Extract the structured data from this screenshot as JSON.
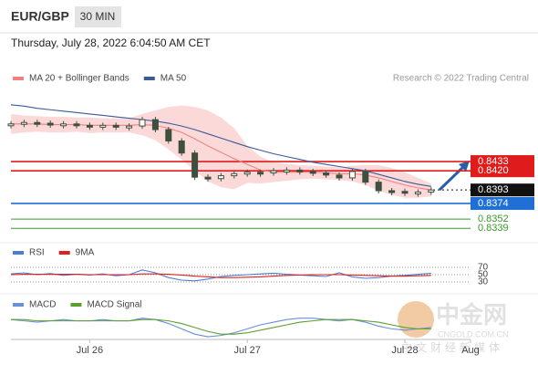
{
  "header": {
    "symbol": "EUR/GBP",
    "interval": "30 MIN",
    "timestamp": "Thursday, July 28, 2022 6:04:50 AM CET",
    "source": "Research © 2022 Trading Central"
  },
  "watermark": {
    "brand": "中金网",
    "site": "CNGOLD.COM.CN",
    "slogan": "中文财经新媒体"
  },
  "chart_data": [
    {
      "type": "candlestick",
      "categories": [
        null,
        null,
        null,
        null,
        null,
        null,
        "Jul 26",
        null,
        null,
        null,
        null,
        null,
        null,
        null,
        null,
        null,
        null,
        null,
        "Jul 27",
        null,
        null,
        null,
        null,
        null,
        null,
        null,
        null,
        null,
        null,
        null,
        "Jul 28",
        null,
        null,
        null,
        null,
        "Aug"
      ],
      "ylim": [
        0.8329,
        0.8532
      ],
      "price": {
        "color": "#3f4f3f",
        "values": [
          0.8486,
          0.8488,
          0.8487,
          0.8485,
          0.8486,
          0.8484,
          0.8483,
          0.8484,
          0.8482,
          0.8483,
          0.8492,
          0.8478,
          0.8462,
          0.8445,
          0.8411,
          0.8409,
          0.8413,
          0.8416,
          0.8418,
          0.8417,
          0.842,
          0.8421,
          0.8419,
          0.8417,
          0.8414,
          0.841,
          0.8419,
          0.8404,
          0.8392,
          0.8391,
          0.8389,
          0.839,
          0.8393,
          null,
          null,
          null
        ]
      },
      "series": [
        {
          "name": "MA 20 + Bollinger Bands",
          "color": "#f08080",
          "band_color": "#fcd9d9",
          "values": [
            0.8486,
            0.8486,
            0.8486,
            0.8485,
            0.8485,
            0.8485,
            0.8484,
            0.8484,
            0.8484,
            0.8484,
            0.8485,
            0.8484,
            0.848,
            0.8474,
            0.8465,
            0.8455,
            0.8446,
            0.8437,
            0.8429,
            0.8421,
            0.8418,
            0.8418,
            0.8418,
            0.8418,
            0.8417,
            0.8416,
            0.8416,
            0.8414,
            0.841,
            0.8405,
            0.84,
            0.8396,
            0.8393,
            null,
            null,
            null
          ],
          "band_upper": [
            0.85,
            0.8498,
            0.8497,
            0.8496,
            0.8496,
            0.8495,
            0.8495,
            0.8494,
            0.8494,
            0.8494,
            0.85,
            0.8505,
            0.851,
            0.8512,
            0.851,
            0.8505,
            0.8495,
            0.848,
            0.8455,
            0.844,
            0.8432,
            0.843,
            0.8428,
            0.8427,
            0.8426,
            0.8425,
            0.8427,
            0.8428,
            0.8428,
            0.8424,
            0.8418,
            0.841,
            0.8402,
            null,
            null,
            null
          ],
          "band_lower": [
            0.8472,
            0.8474,
            0.8475,
            0.8474,
            0.8474,
            0.8475,
            0.8473,
            0.8474,
            0.8474,
            0.8474,
            0.847,
            0.8463,
            0.845,
            0.8436,
            0.842,
            0.8405,
            0.8397,
            0.8394,
            0.8403,
            0.8402,
            0.8404,
            0.8406,
            0.8408,
            0.8409,
            0.8408,
            0.8407,
            0.8405,
            0.84,
            0.8392,
            0.8386,
            0.8382,
            0.8382,
            0.8384,
            null,
            null,
            null
          ]
        },
        {
          "name": "MA 50",
          "color": "#3a5a9a",
          "values": [
            0.8513,
            0.8511,
            0.8508,
            0.8506,
            0.8504,
            0.8502,
            0.85,
            0.8498,
            0.8496,
            0.8494,
            0.8492,
            0.849,
            0.8487,
            0.8483,
            0.8478,
            0.8472,
            0.8466,
            0.846,
            0.8454,
            0.8449,
            0.8444,
            0.844,
            0.8436,
            0.8432,
            0.8429,
            0.8426,
            0.8423,
            0.842,
            0.8415,
            0.841,
            0.8405,
            0.8401,
            0.8398,
            null,
            null,
            null
          ]
        }
      ],
      "levels": [
        {
          "value": 0.8433,
          "color": "#e01b1b",
          "boxed": true
        },
        {
          "value": 0.842,
          "label": "0.8420",
          "color": "#e01b1b",
          "boxed": true
        },
        {
          "value": 0.8393,
          "color": "#111111",
          "boxed": true,
          "dashed": true
        },
        {
          "value": 0.8374,
          "color": "#1f6fd6",
          "boxed": true
        },
        {
          "value": 0.8352,
          "color": "#3a9a2a",
          "boxed": false
        },
        {
          "value": 0.8339,
          "color": "#3a9a2a",
          "boxed": false
        }
      ]
    },
    {
      "type": "line",
      "ylim": [
        10,
        90
      ],
      "yticks": [
        70,
        50,
        30
      ],
      "series": [
        {
          "name": "RSI",
          "color": "#4a7fd4",
          "values": [
            52,
            55,
            50,
            53,
            48,
            51,
            49,
            52,
            47,
            50,
            63,
            55,
            42,
            35,
            33,
            38,
            45,
            48,
            50,
            52,
            54,
            51,
            49,
            47,
            45,
            55,
            44,
            40,
            42,
            46,
            48,
            51,
            54,
            null,
            null,
            null
          ]
        },
        {
          "name": "9MA",
          "color": "#e02020",
          "values": [
            50,
            51,
            51,
            51,
            51,
            51,
            50,
            50,
            50,
            50,
            52,
            52,
            51,
            49,
            46,
            44,
            42,
            42,
            43,
            44,
            46,
            48,
            49,
            50,
            50,
            50,
            49,
            48,
            47,
            46,
            46,
            47,
            48,
            null,
            null,
            null
          ]
        }
      ]
    },
    {
      "type": "line",
      "ylim": [
        -0.0014,
        0.0008
      ],
      "series": [
        {
          "name": "MACD",
          "color": "#6a8fd8",
          "values": [
            0.0001,
            0,
            -0.0001,
            0,
            0.0001,
            0,
            0,
            0.0001,
            0,
            0,
            0.0002,
            0.0001,
            -0.0002,
            -0.0006,
            -0.001,
            -0.0012,
            -0.0011,
            -0.0009,
            -0.0006,
            -0.0003,
            -0.0001,
            0.0001,
            0.0002,
            0.0002,
            0.0001,
            0,
            0.0001,
            -0.0001,
            -0.0004,
            -0.0006,
            -0.0007,
            -0.0006,
            -0.0005,
            null,
            null,
            null
          ]
        },
        {
          "name": "MACD Signal",
          "color": "#5aa02c",
          "values": [
            0.0001,
            0.0001,
            0,
            0,
            0,
            0,
            0,
            0,
            0,
            0,
            0.0001,
            0.0001,
            0,
            -0.0002,
            -0.0005,
            -0.0008,
            -0.001,
            -0.001,
            -0.0009,
            -0.0007,
            -0.0005,
            -0.0003,
            -0.0001,
            0,
            0.0001,
            0.0001,
            0.0001,
            0,
            -0.0001,
            -0.0003,
            -0.0005,
            -0.0006,
            -0.0006,
            null,
            null,
            null
          ]
        }
      ]
    }
  ]
}
